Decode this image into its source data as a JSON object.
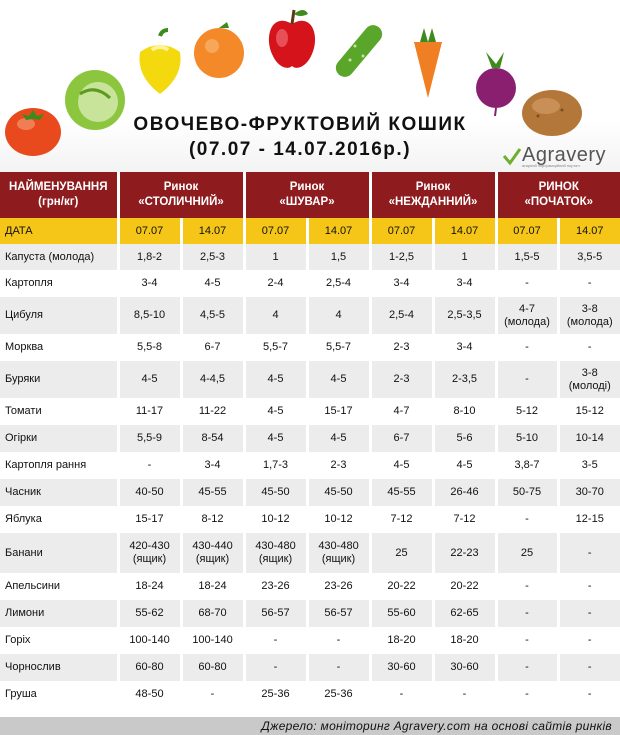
{
  "title_line1": "ОВОЧЕВО-ФРУКТОВИЙ КОШИК",
  "title_line2": "(07.07 - 14.07.2016р.)",
  "logo": "Agravery",
  "logo_tagline": "агарний інформаційний портал",
  "columns_header": {
    "name": "НАЙМЕНУВАННЯ (грн/кг)",
    "markets": [
      "Ринок «СТОЛИЧНИЙ»",
      "Ринок «ШУВАР»",
      "Ринок «НЕЖДАННИЙ»",
      "РИНОК «ПОЧАТОК»"
    ]
  },
  "date_row": [
    "ДАТА",
    "07.07",
    "14.07",
    "07.07",
    "14.07",
    "07.07",
    "14.07",
    "07.07",
    "14.07"
  ],
  "rows": [
    {
      "name": "Капуста (молода)",
      "values": [
        "1,8-2",
        "2,5-3",
        "1",
        "1,5",
        "1-2,5",
        "1",
        "1,5-5",
        "3,5-5"
      ]
    },
    {
      "name": "Картопля",
      "values": [
        "3-4",
        "4-5",
        "2-4",
        "2,5-4",
        "3-4",
        "3-4",
        "-",
        "-"
      ]
    },
    {
      "name": "Цибуля",
      "values": [
        "8,5-10",
        "4,5-5",
        "4",
        "4",
        "2,5-4",
        "2,5-3,5",
        "4-7\n(молода)",
        "3-8\n(молода)"
      ]
    },
    {
      "name": "Морква",
      "values": [
        "5,5-8",
        "6-7",
        "5,5-7",
        "5,5-7",
        "2-3",
        "3-4",
        "-",
        "-"
      ]
    },
    {
      "name": "Буряки",
      "values": [
        "4-5",
        "4-4,5",
        "4-5",
        "4-5",
        "2-3",
        "2-3,5",
        "-",
        "3-8\n(молоді)"
      ]
    },
    {
      "name": "Томати",
      "values": [
        "11-17",
        "11-22",
        "4-5",
        "15-17",
        "4-7",
        "8-10",
        "5-12",
        "15-12"
      ]
    },
    {
      "name": "Огірки",
      "values": [
        "5,5-9",
        "8-54",
        "4-5",
        "4-5",
        "6-7",
        "5-6",
        "5-10",
        "10-14"
      ]
    },
    {
      "name": "Картопля рання",
      "values": [
        "-",
        "3-4",
        "1,7-3",
        "2-3",
        "4-5",
        "4-5",
        "3,8-7",
        "3-5"
      ]
    },
    {
      "name": "Часник",
      "values": [
        "40-50",
        "45-55",
        "45-50",
        "45-50",
        "45-55",
        "26-46",
        "50-75",
        "30-70"
      ]
    },
    {
      "name": "Яблука",
      "values": [
        "15-17",
        "8-12",
        "10-12",
        "10-12",
        "7-12",
        "7-12",
        "-",
        "12-15"
      ]
    },
    {
      "name": "Банани",
      "values": [
        "420-430\n(ящик)",
        "430-440\n(ящик)",
        "430-480\n(ящик)",
        "430-480\n(ящик)",
        "25",
        "22-23",
        "25",
        "-"
      ]
    },
    {
      "name": "Апельсини",
      "values": [
        "18-24",
        "18-24",
        "23-26",
        "23-26",
        "20-22",
        "20-22",
        "-",
        "-"
      ]
    },
    {
      "name": "Лимони",
      "values": [
        "55-62",
        "68-70",
        "56-57",
        "56-57",
        "55-60",
        "62-65",
        "-",
        "-"
      ]
    },
    {
      "name": "Горіх",
      "values": [
        "100-140",
        "100-140",
        "-",
        "-",
        "18-20",
        "18-20",
        "-",
        "-"
      ]
    },
    {
      "name": "Чорнослив",
      "values": [
        "60-80",
        "60-80",
        "-",
        "-",
        "30-60",
        "30-60",
        "-",
        "-"
      ]
    },
    {
      "name": "Груша",
      "values": [
        "48-50",
        "-",
        "25-36",
        "25-36",
        "-",
        "-",
        "-",
        "-"
      ]
    }
  ],
  "footer": "Джерело: моніторинг Agravery.com на основі сайтів ринків",
  "colors": {
    "header_red": "#8e1b1e",
    "date_yellow": "#f5c518",
    "stripe_gray": "#ececec",
    "footer_gray": "#c9c9c9"
  },
  "icons": [
    "tomato-icon",
    "cabbage-icon",
    "pepper-icon",
    "orange-icon",
    "apple-icon",
    "cucumber-icon",
    "carrot-icon",
    "beet-icon",
    "potato-icon"
  ]
}
